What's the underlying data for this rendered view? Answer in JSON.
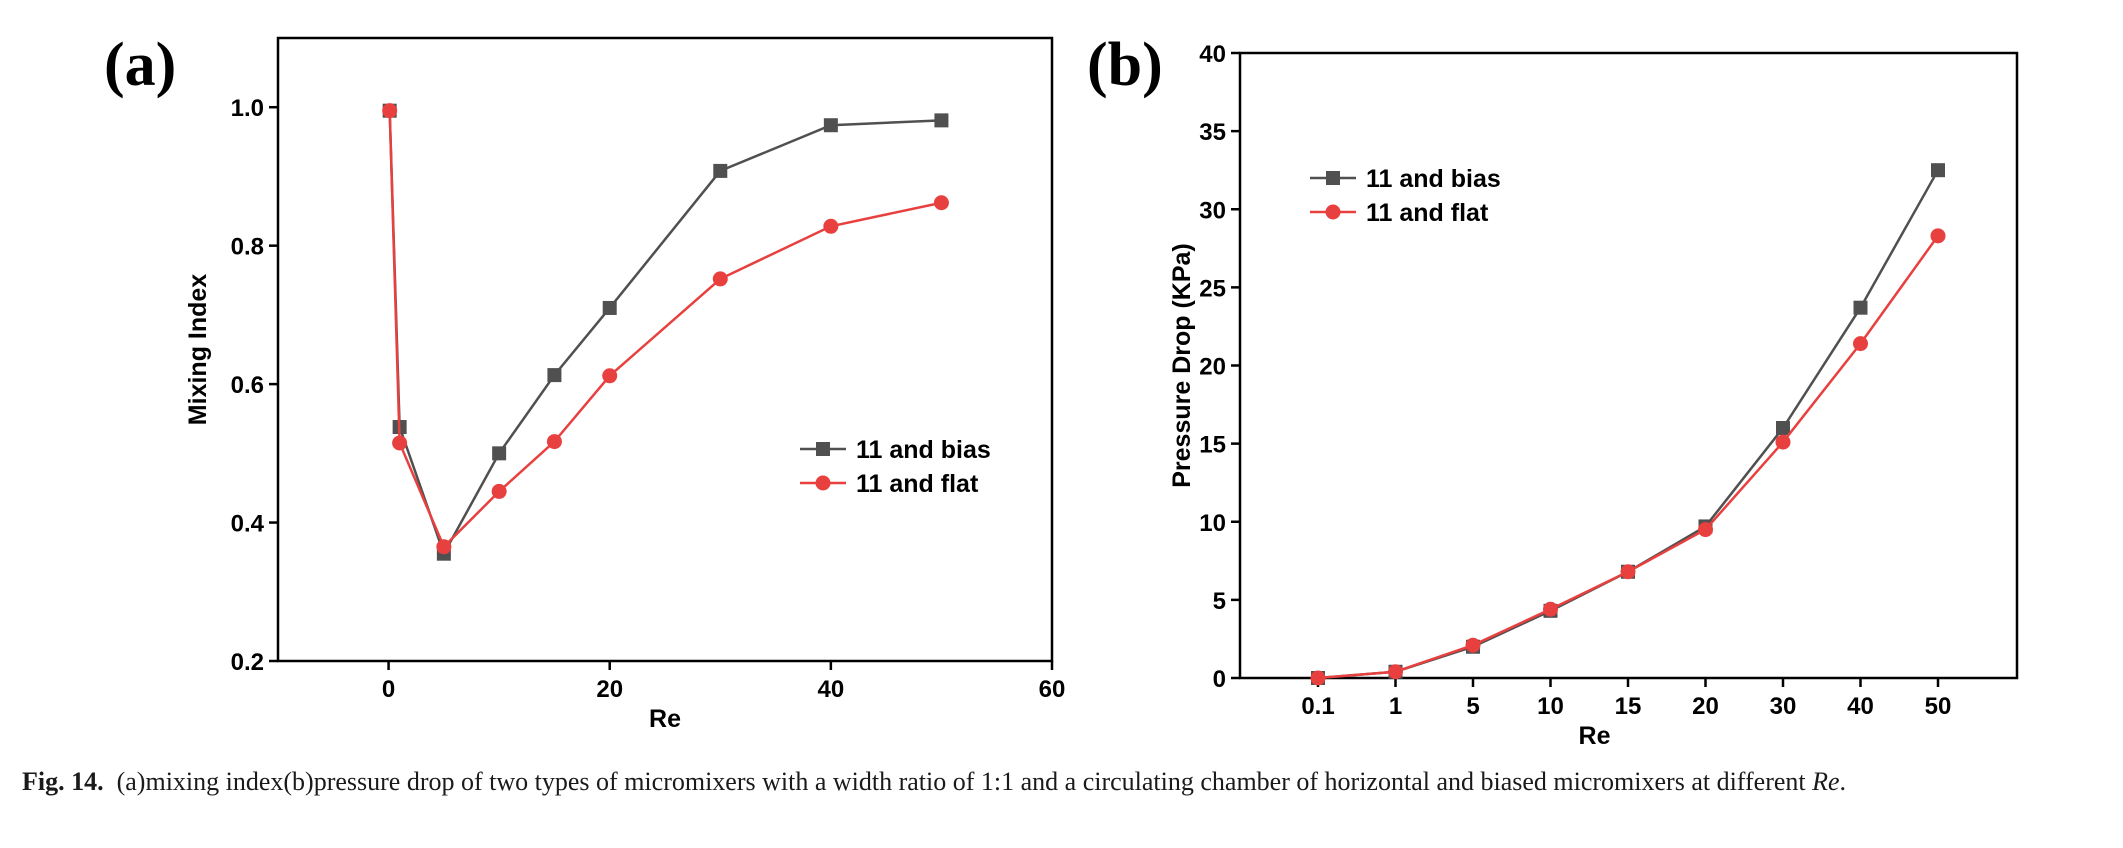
{
  "caption": {
    "label": "Fig. 14.",
    "text": "(a)mixing index(b)pressure drop of two types of micromixers with a width ratio of 1:1 and a circulating chamber of horizontal and biased micromixers at different",
    "italic": "Re",
    "end": "."
  },
  "colors": {
    "bias": "#505050",
    "flat": "#e8403f",
    "axis": "#000000"
  },
  "chart_data": [
    {
      "panel": "(a)",
      "type": "line",
      "xlabel": "Re",
      "ylabel": "Mixing Index",
      "xlim": [
        -10,
        60
      ],
      "ylim": [
        0.2,
        1.1
      ],
      "xticks": [
        0,
        20,
        40,
        60
      ],
      "yticks": [
        0.2,
        0.4,
        0.6,
        0.8,
        1.0
      ],
      "xtick_labels": [
        "0",
        "20",
        "40",
        "60"
      ],
      "ytick_labels": [
        "0.2",
        "0.4",
        "0.6",
        "0.8",
        "1.0"
      ],
      "legend_position": "middle-right",
      "series": [
        {
          "name": "11 and bias",
          "marker": "square",
          "x": [
            0.1,
            1,
            5,
            10,
            15,
            20,
            30,
            40,
            50
          ],
          "y": [
            0.995,
            0.538,
            0.355,
            0.5,
            0.613,
            0.71,
            0.908,
            0.974,
            0.981
          ]
        },
        {
          "name": "11 and flat",
          "marker": "circle",
          "x": [
            0.1,
            1,
            5,
            10,
            15,
            20,
            30,
            40,
            50
          ],
          "y": [
            0.995,
            0.515,
            0.365,
            0.445,
            0.517,
            0.612,
            0.752,
            0.828,
            0.862
          ]
        }
      ]
    },
    {
      "panel": "(b)",
      "type": "line",
      "xlabel": "Re",
      "ylabel": "Pressure Drop (KPa)",
      "categories": [
        "0.1",
        "1",
        "5",
        "10",
        "15",
        "20",
        "30",
        "40",
        "50"
      ],
      "ylim": [
        0,
        40
      ],
      "yticks": [
        0,
        5,
        10,
        15,
        20,
        25,
        30,
        35,
        40
      ],
      "ytick_labels": [
        "0",
        "5",
        "10",
        "15",
        "20",
        "25",
        "30",
        "35",
        "40"
      ],
      "legend_position": "top-left",
      "series": [
        {
          "name": "11 and bias",
          "marker": "square",
          "values": [
            0.0,
            0.4,
            2.0,
            4.3,
            6.8,
            9.7,
            16.0,
            23.7,
            32.5
          ]
        },
        {
          "name": "11 and flat",
          "marker": "circle",
          "values": [
            0.0,
            0.4,
            2.1,
            4.4,
            6.8,
            9.5,
            15.1,
            21.4,
            28.3
          ]
        }
      ]
    }
  ]
}
